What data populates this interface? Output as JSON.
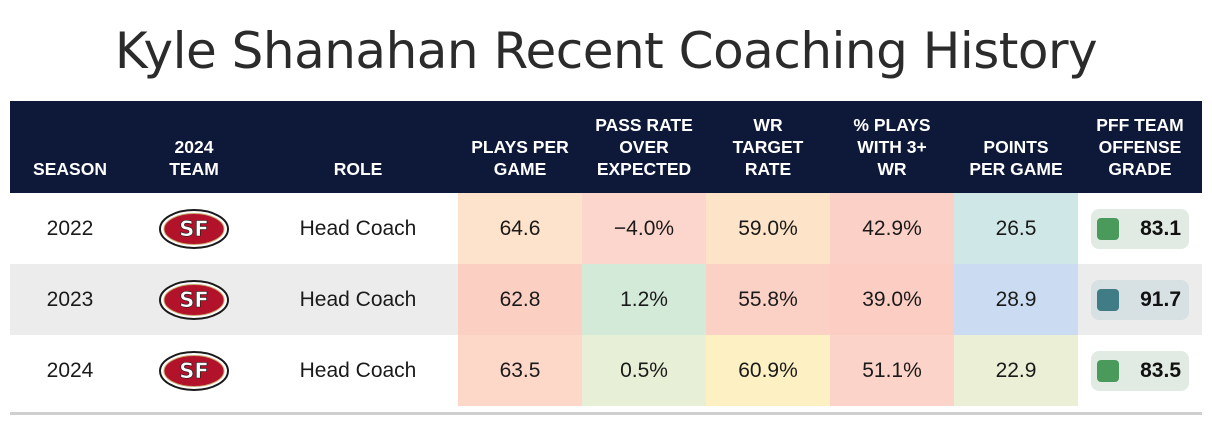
{
  "title": "Kyle Shanahan Recent Coaching History",
  "headers": {
    "season": "SEASON",
    "team": "2024\nTEAM",
    "role": "ROLE",
    "plays": "PLAYS PER\nGAME",
    "proe": "PASS RATE\nOVER\nEXPECTED",
    "wr_target": "WR\nTARGET\nRATE",
    "pct_3wr": "% PLAYS\nWITH 3+\nWR",
    "ppg": "POINTS\nPER GAME",
    "grade": "PFF TEAM\nOFFENSE\nGRADE"
  },
  "team_logo_icon": "49ers-logo-icon",
  "rows": [
    {
      "season": "2022",
      "role": "Head Coach",
      "plays": "64.6",
      "proe": "−4.0%",
      "wr_target": "59.0%",
      "pct_3wr": "42.9%",
      "ppg": "26.5",
      "grade": "83.1",
      "colors": {
        "plays": "#fde3cc",
        "proe": "#fcd6cc",
        "wr_target": "#fde3c8",
        "pct_3wr": "#fbd0c6",
        "ppg": "#cfe7e6",
        "grade_bg": "#e2ebe3",
        "grade_dot": "#4a9a5c"
      }
    },
    {
      "season": "2023",
      "role": "Head Coach",
      "plays": "62.8",
      "proe": "1.2%",
      "wr_target": "55.8%",
      "pct_3wr": "39.0%",
      "ppg": "28.9",
      "grade": "91.7",
      "colors": {
        "plays": "#fccfc3",
        "proe": "#d4ead9",
        "wr_target": "#fbd1c6",
        "pct_3wr": "#fbcdc3",
        "ppg": "#cbdcf2",
        "grade_bg": "#d7e0e3",
        "grade_dot": "#3f7c85"
      }
    },
    {
      "season": "2024",
      "role": "Head Coach",
      "plays": "63.5",
      "proe": "0.5%",
      "wr_target": "60.9%",
      "pct_3wr": "51.1%",
      "ppg": "22.9",
      "grade": "83.5",
      "colors": {
        "plays": "#fdd8c9",
        "proe": "#e7efd7",
        "wr_target": "#fdf0c3",
        "pct_3wr": "#fcd3c8",
        "ppg": "#ebefd6",
        "grade_bg": "#e2ebe3",
        "grade_dot": "#4a9a5c"
      }
    }
  ]
}
